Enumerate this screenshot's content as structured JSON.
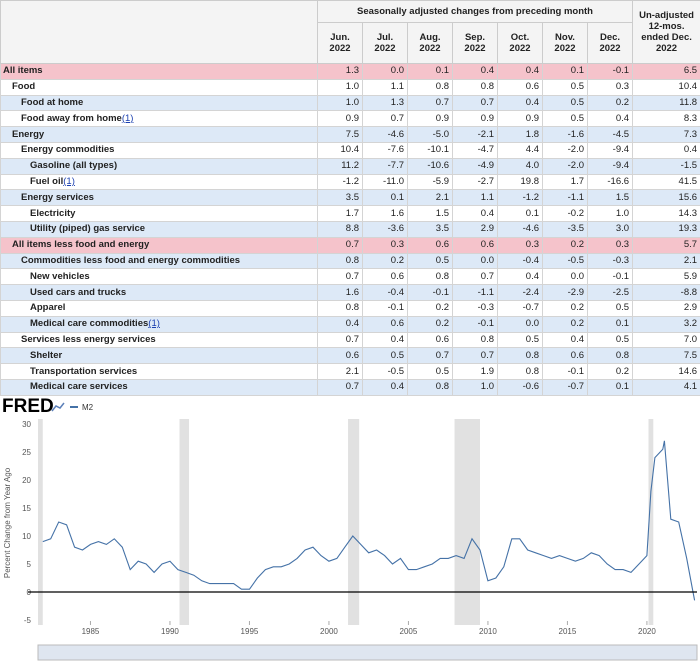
{
  "table": {
    "header": {
      "group": "Seasonally adjusted changes from preceding month",
      "columns": [
        "Jun. 2022",
        "Jul. 2022",
        "Aug. 2022",
        "Sep. 2022",
        "Oct. 2022",
        "Nov. 2022",
        "Dec. 2022",
        "Un-adjusted 12-mos. ended Dec. 2022"
      ]
    },
    "rows": [
      {
        "label": "All items",
        "values": [
          "1.3",
          "0.0",
          "0.1",
          "0.4",
          "0.4",
          "0.1",
          "-0.1",
          "6.5"
        ]
      },
      {
        "label": "Food",
        "values": [
          "1.0",
          "1.1",
          "0.8",
          "0.8",
          "0.6",
          "0.5",
          "0.3",
          "10.4"
        ]
      },
      {
        "label": "Food at home",
        "values": [
          "1.0",
          "1.3",
          "0.7",
          "0.7",
          "0.4",
          "0.5",
          "0.2",
          "11.8"
        ]
      },
      {
        "label": "Food away from home",
        "note": "(1)",
        "values": [
          "0.9",
          "0.7",
          "0.9",
          "0.9",
          "0.9",
          "0.5",
          "0.4",
          "8.3"
        ]
      },
      {
        "label": "Energy",
        "values": [
          "7.5",
          "-4.6",
          "-5.0",
          "-2.1",
          "1.8",
          "-1.6",
          "-4.5",
          "7.3"
        ]
      },
      {
        "label": "Energy commodities",
        "values": [
          "10.4",
          "-7.6",
          "-10.1",
          "-4.7",
          "4.4",
          "-2.0",
          "-9.4",
          "0.4"
        ]
      },
      {
        "label": "Gasoline (all types)",
        "values": [
          "11.2",
          "-7.7",
          "-10.6",
          "-4.9",
          "4.0",
          "-2.0",
          "-9.4",
          "-1.5"
        ]
      },
      {
        "label": "Fuel oil",
        "note": "(1)",
        "values": [
          "-1.2",
          "-11.0",
          "-5.9",
          "-2.7",
          "19.8",
          "1.7",
          "-16.6",
          "41.5"
        ]
      },
      {
        "label": "Energy services",
        "values": [
          "3.5",
          "0.1",
          "2.1",
          "1.1",
          "-1.2",
          "-1.1",
          "1.5",
          "15.6"
        ]
      },
      {
        "label": "Electricity",
        "values": [
          "1.7",
          "1.6",
          "1.5",
          "0.4",
          "0.1",
          "-0.2",
          "1.0",
          "14.3"
        ]
      },
      {
        "label": "Utility (piped) gas service",
        "values": [
          "8.8",
          "-3.6",
          "3.5",
          "2.9",
          "-4.6",
          "-3.5",
          "3.0",
          "19.3"
        ]
      },
      {
        "label": "All items less food and energy",
        "values": [
          "0.7",
          "0.3",
          "0.6",
          "0.6",
          "0.3",
          "0.2",
          "0.3",
          "5.7"
        ]
      },
      {
        "label": "Commodities less food and energy commodities",
        "values": [
          "0.8",
          "0.2",
          "0.5",
          "0.0",
          "-0.4",
          "-0.5",
          "-0.3",
          "2.1"
        ]
      },
      {
        "label": "New vehicles",
        "values": [
          "0.7",
          "0.6",
          "0.8",
          "0.7",
          "0.4",
          "0.0",
          "-0.1",
          "5.9"
        ]
      },
      {
        "label": "Used cars and trucks",
        "values": [
          "1.6",
          "-0.4",
          "-0.1",
          "-1.1",
          "-2.4",
          "-2.9",
          "-2.5",
          "-8.8"
        ]
      },
      {
        "label": "Apparel",
        "values": [
          "0.8",
          "-0.1",
          "0.2",
          "-0.3",
          "-0.7",
          "0.2",
          "0.5",
          "2.9"
        ]
      },
      {
        "label": "Medical care commodities",
        "note": "(1)",
        "values": [
          "0.4",
          "0.6",
          "0.2",
          "-0.1",
          "0.0",
          "0.2",
          "0.1",
          "3.2"
        ]
      },
      {
        "label": "Services less energy services",
        "values": [
          "0.7",
          "0.4",
          "0.6",
          "0.8",
          "0.5",
          "0.4",
          "0.5",
          "7.0"
        ]
      },
      {
        "label": "Shelter",
        "values": [
          "0.6",
          "0.5",
          "0.7",
          "0.7",
          "0.8",
          "0.6",
          "0.8",
          "7.5"
        ]
      },
      {
        "label": "Transportation services",
        "values": [
          "2.1",
          "-0.5",
          "0.5",
          "1.9",
          "0.8",
          "-0.1",
          "0.2",
          "14.6"
        ]
      },
      {
        "label": "Medical care services",
        "values": [
          "0.7",
          "0.4",
          "0.8",
          "1.0",
          "-0.6",
          "-0.7",
          "0.1",
          "4.1"
        ]
      }
    ]
  },
  "chart_data": {
    "type": "line",
    "logo": "FRED",
    "y_label": "Percent Change from Year Ago",
    "series": [
      {
        "name": "M2",
        "color": "#4572a7",
        "x": [
          1982,
          1982.5,
          1983,
          1983.5,
          1984,
          1984.5,
          1985,
          1985.5,
          1986,
          1986.5,
          1987,
          1987.5,
          1988,
          1988.5,
          1989,
          1989.5,
          1990,
          1990.5,
          1991,
          1991.5,
          1992,
          1992.5,
          1993,
          1993.5,
          1994,
          1994.5,
          1995,
          1995.5,
          1996,
          1996.5,
          1997,
          1997.5,
          1998,
          1998.5,
          1999,
          1999.5,
          2000,
          2000.5,
          2001,
          2001.5,
          2002,
          2002.5,
          2003,
          2003.5,
          2004,
          2004.5,
          2005,
          2005.5,
          2006,
          2006.5,
          2007,
          2007.5,
          2008,
          2008.5,
          2009,
          2009.5,
          2010,
          2010.5,
          2011,
          2011.5,
          2012,
          2012.5,
          2013,
          2013.5,
          2014,
          2014.5,
          2015,
          2015.5,
          2016,
          2016.5,
          2017,
          2017.5,
          2018,
          2018.5,
          2019,
          2019.5,
          2020,
          2020.25,
          2020.5,
          2021,
          2021.1,
          2021.5,
          2022,
          2022.5,
          2022.9,
          2023
        ],
        "values": [
          9,
          9.5,
          12.5,
          12,
          8,
          7.5,
          8.5,
          9,
          8.5,
          9.5,
          8,
          4,
          5.5,
          5,
          3.5,
          5,
          5.5,
          4,
          3.5,
          3,
          2,
          1.5,
          1.5,
          1.5,
          1.5,
          0.5,
          0.5,
          2.5,
          4,
          4.5,
          4.5,
          5,
          6,
          7.5,
          8,
          6.5,
          5.5,
          6,
          8,
          10,
          8.5,
          7,
          7.5,
          6.5,
          5,
          6,
          4,
          4,
          4.5,
          5,
          6,
          6,
          6.5,
          6,
          9.5,
          7.5,
          2,
          2.5,
          4.5,
          9.5,
          9.5,
          7.5,
          7,
          6.5,
          6,
          6.5,
          6,
          5.5,
          6,
          7,
          6.5,
          5,
          4,
          4,
          3.5,
          5,
          6.5,
          18,
          24,
          25.5,
          27,
          13,
          12.5,
          6,
          0,
          -1.5
        ]
      }
    ],
    "recessions": [
      [
        1981.7,
        1982.0
      ],
      [
        1990.6,
        1991.2
      ],
      [
        2001.2,
        2001.9
      ],
      [
        2007.9,
        2009.5
      ],
      [
        2020.1,
        2020.4
      ]
    ],
    "xlim": [
      1981.7,
      2023.15
    ],
    "ylim": [
      -5,
      30
    ],
    "xticks": [
      1985,
      1990,
      1995,
      2000,
      2005,
      2010,
      2015,
      2020
    ],
    "yticks": [
      -5,
      0,
      5,
      10,
      15,
      20,
      25,
      30
    ],
    "grid": false
  }
}
